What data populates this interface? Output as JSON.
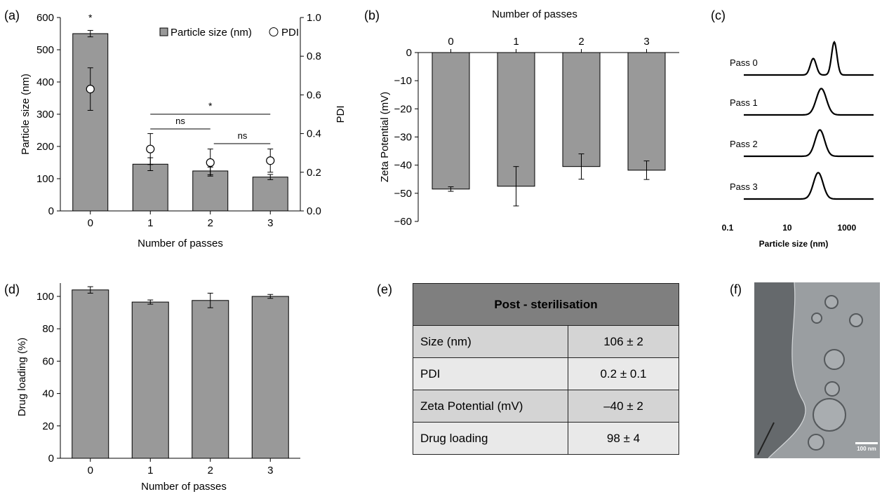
{
  "panels": {
    "a": "(a)",
    "b": "(b)",
    "c": "(c)",
    "d": "(d)",
    "e": "(e)",
    "f": "(f)"
  },
  "chart_data": [
    {
      "id": "a",
      "type": "bar",
      "categories": [
        "0",
        "1",
        "2",
        "3"
      ],
      "series": [
        {
          "name": "Particle size (nm)",
          "kind": "bar",
          "values": [
            550,
            145,
            124,
            105
          ],
          "errors": [
            10,
            20,
            12,
            8
          ],
          "color": "#999999"
        },
        {
          "name": "PDI",
          "kind": "scatter",
          "axis": "right",
          "values": [
            0.63,
            0.32,
            0.25,
            0.26
          ],
          "errors": [
            0.11,
            0.08,
            0.07,
            0.06
          ]
        }
      ],
      "xlabel": "Number of passes",
      "ylabel": "Particle size (nm)",
      "ylim": [
        0,
        600
      ],
      "yticks": [
        "0",
        "100",
        "200",
        "300",
        "400",
        "500",
        "600"
      ],
      "y2label": "PDI",
      "y2lim": [
        0,
        1
      ],
      "y2ticks": [
        "0.0",
        "0.2",
        "0.4",
        "0.6",
        "0.8",
        "1.0"
      ],
      "legend": "top-right",
      "annotations": {
        "star0": "*",
        "bracket_1_3": "*",
        "bracket_1_2": "ns",
        "bracket_2_3": "ns"
      }
    },
    {
      "id": "b",
      "type": "bar",
      "categories": [
        "0",
        "1",
        "2",
        "3"
      ],
      "series": [
        {
          "name": "",
          "values": [
            -48.5,
            -47.5,
            -40.5,
            -41.8
          ],
          "errors": [
            0.8,
            7,
            4.5,
            3.3
          ],
          "color": "#999999"
        }
      ],
      "xlabel": "Number of passes",
      "xaxis_position": "top",
      "ylabel": "Zeta Potential (mV)",
      "ylim": [
        -60,
        0
      ],
      "yticks": [
        "0",
        "−10",
        "−20",
        "−30",
        "−40",
        "−50",
        "−60"
      ]
    },
    {
      "id": "c",
      "type": "line",
      "xscale": "log",
      "xticks": [
        "0.1",
        "10",
        "1000"
      ],
      "xlabel": "Particle size (nm)",
      "series": [
        {
          "name": "Pass 0",
          "peaks": [
            {
              "center": 75,
              "width": 0.1,
              "height": 0.5
            },
            {
              "center": 380,
              "width": 0.09,
              "height": 1.0
            }
          ]
        },
        {
          "name": "Pass 1",
          "peaks": [
            {
              "center": 140,
              "width": 0.17,
              "height": 0.8
            }
          ]
        },
        {
          "name": "Pass 2",
          "peaks": [
            {
              "center": 125,
              "width": 0.16,
              "height": 0.8
            }
          ]
        },
        {
          "name": "Pass 3",
          "peaks": [
            {
              "center": 110,
              "width": 0.16,
              "height": 0.8
            }
          ]
        }
      ]
    },
    {
      "id": "d",
      "type": "bar",
      "categories": [
        "0",
        "1",
        "2",
        "3"
      ],
      "series": [
        {
          "name": "",
          "values": [
            104,
            96.5,
            97.5,
            100
          ],
          "errors": [
            2,
            1.3,
            4.5,
            1.2
          ],
          "color": "#999999"
        }
      ],
      "xlabel": "Number of passes",
      "ylabel": "Drug loading (%)",
      "ylim": [
        0,
        100
      ],
      "yticks": [
        "0",
        "20",
        "40",
        "60",
        "80",
        "100"
      ]
    },
    {
      "id": "e",
      "type": "table",
      "header": "Post - sterilisation",
      "rows": [
        {
          "label": "Size (nm)",
          "value": "106 ± 2"
        },
        {
          "label": "PDI",
          "value": "0.2 ± 0.1"
        },
        {
          "label": "Zeta Potential  (mV)",
          "value": "–40 ± 2"
        },
        {
          "label": "Drug loading",
          "value": "98 ± 4"
        }
      ]
    }
  ],
  "micrograph": {
    "scale_bar": "100 nm"
  }
}
